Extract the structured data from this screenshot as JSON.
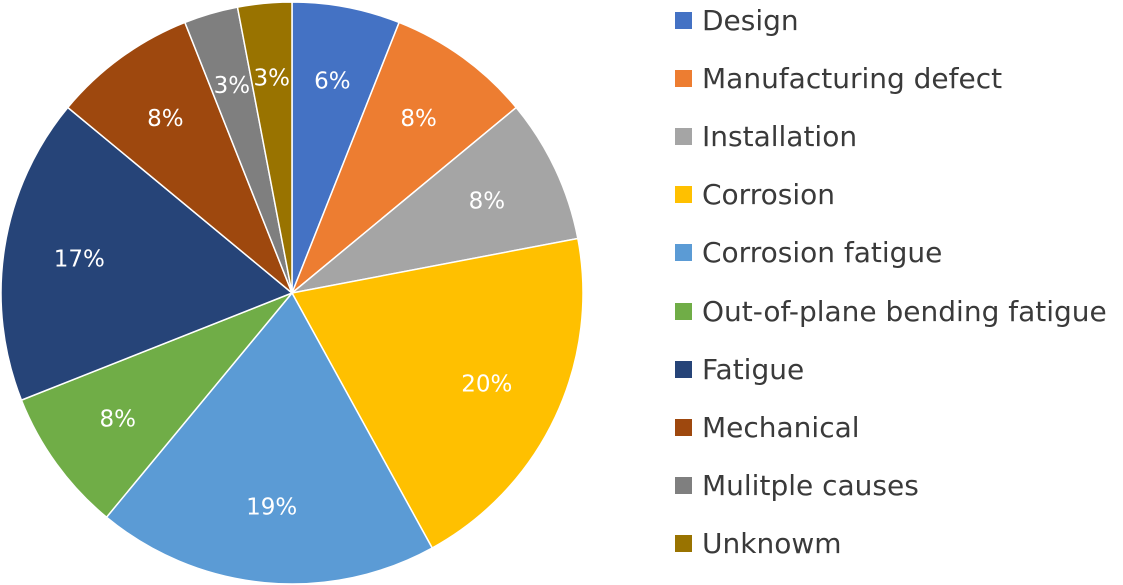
{
  "chart_data": {
    "type": "pie",
    "title": "",
    "start_angle_deg": 0,
    "direction": "clockwise",
    "legend_position": "right",
    "slices": [
      {
        "label": "Design",
        "value": 6,
        "value_label": "6%",
        "color": "#4472C4"
      },
      {
        "label": "Manufacturing defect",
        "value": 8,
        "value_label": "8%",
        "color": "#ED7D31"
      },
      {
        "label": "Installation",
        "value": 8,
        "value_label": "8%",
        "color": "#A5A5A5"
      },
      {
        "label": "Corrosion",
        "value": 20,
        "value_label": "20%",
        "color": "#FFC000"
      },
      {
        "label": "Corrosion fatigue",
        "value": 19,
        "value_label": "19%",
        "color": "#5B9BD5"
      },
      {
        "label": "Out-of-plane bending fatigue",
        "value": 8,
        "value_label": "8%",
        "color": "#70AD47"
      },
      {
        "label": "Fatigue",
        "value": 17,
        "value_label": "17%",
        "color": "#264478"
      },
      {
        "label": "Mechanical",
        "value": 8,
        "value_label": "8%",
        "color": "#9E480E"
      },
      {
        "label": "Mulitple causes",
        "value": 3,
        "value_label": "3%",
        "color": "#7F7F7F"
      },
      {
        "label": "Unknowm",
        "value": 3,
        "value_label": "3%",
        "color": "#997300"
      }
    ]
  }
}
